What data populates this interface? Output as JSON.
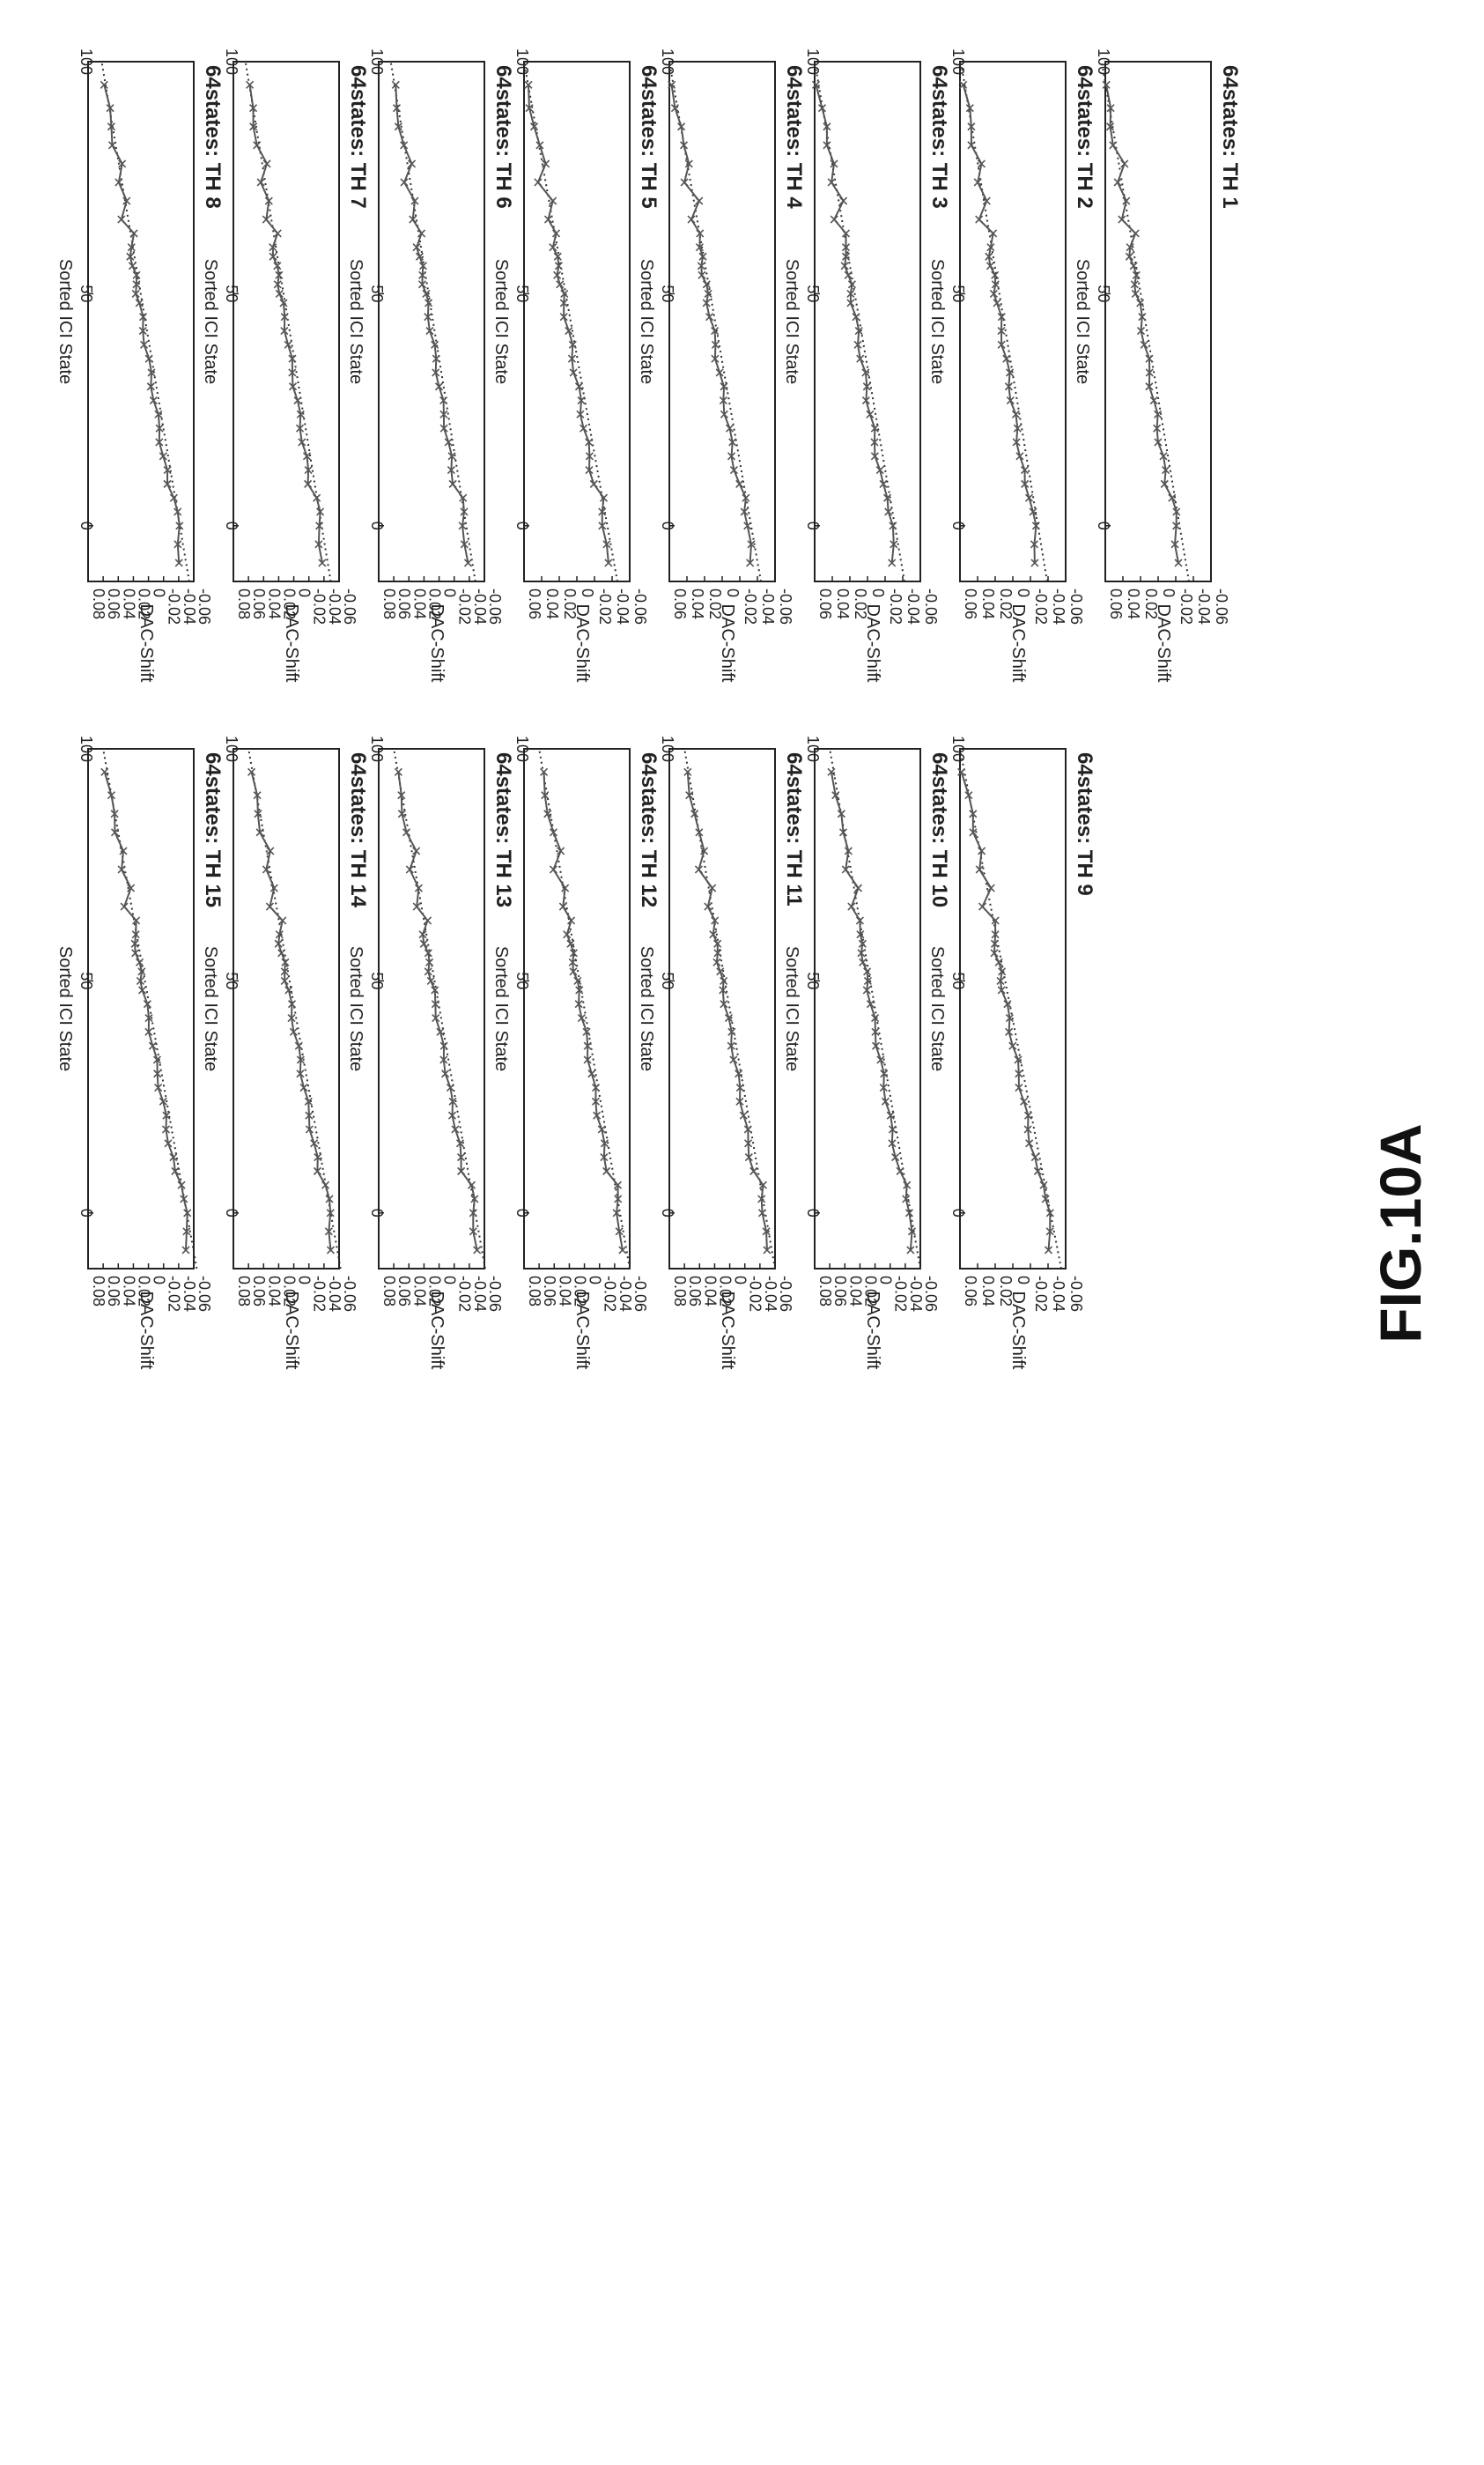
{
  "figure_label": "FIG.10A",
  "chart_data": [
    {
      "type": "line",
      "title": "64states: TH 1",
      "xlabel": "Sorted ICI State",
      "ylabel": "DAC-Shift",
      "xlim": [
        -12,
        100
      ],
      "ylim": [
        -0.06,
        0.06
      ],
      "xticks": [
        0,
        50,
        100
      ],
      "yticks": [
        -0.06,
        -0.04,
        -0.02,
        0,
        0.02,
        0.04,
        0.06
      ],
      "start": -0.023,
      "end": 0.06,
      "series": [
        {
          "name": "",
          "style": "solid-x",
          "values": []
        },
        {
          "name": "",
          "style": "dotted-fit",
          "values": []
        }
      ]
    },
    {
      "type": "line",
      "title": "64states: TH 2",
      "xlabel": "Sorted ICI State",
      "ylabel": "DAC-Shift",
      "xlim": [
        -12,
        100
      ],
      "ylim": [
        -0.06,
        0.06
      ],
      "xticks": [
        0,
        50,
        100
      ],
      "yticks": [
        -0.06,
        -0.04,
        -0.02,
        0,
        0.02,
        0.04,
        0.06
      ],
      "start": -0.027,
      "end": 0.055,
      "series": [
        {
          "name": "",
          "style": "solid-x",
          "values": []
        },
        {
          "name": "",
          "style": "dotted-fit",
          "values": []
        }
      ]
    },
    {
      "type": "line",
      "title": "64states: TH 3",
      "xlabel": "Sorted ICI State",
      "ylabel": "DAC-Shift",
      "xlim": [
        -12,
        100
      ],
      "ylim": [
        -0.06,
        0.06
      ],
      "xticks": [
        0,
        50,
        100
      ],
      "yticks": [
        -0.06,
        -0.04,
        -0.02,
        0,
        0.02,
        0.04,
        0.06
      ],
      "start": -0.03,
      "end": 0.056,
      "series": [
        {
          "name": "",
          "style": "solid-x",
          "values": []
        },
        {
          "name": "",
          "style": "dotted-fit",
          "values": []
        }
      ]
    },
    {
      "type": "line",
      "title": "64states: TH 4",
      "xlabel": "Sorted ICI State",
      "ylabel": "DAC-Shift",
      "xlim": [
        -12,
        100
      ],
      "ylim": [
        -0.06,
        0.06
      ],
      "xticks": [
        0,
        50,
        100
      ],
      "yticks": [
        -0.06,
        -0.04,
        -0.02,
        0,
        0.02,
        0.04,
        0.06
      ],
      "start": -0.032,
      "end": 0.056,
      "series": [
        {
          "name": "",
          "style": "solid-x",
          "values": []
        },
        {
          "name": "",
          "style": "dotted-fit",
          "values": []
        }
      ]
    },
    {
      "type": "line",
      "title": "64states: TH 5",
      "xlabel": "Sorted ICI State",
      "ylabel": "DAC-Shift",
      "xlim": [
        -12,
        100
      ],
      "ylim": [
        -0.06,
        0.06
      ],
      "xticks": [
        0,
        50,
        100
      ],
      "yticks": [
        -0.06,
        -0.04,
        -0.02,
        0,
        0.02,
        0.04,
        0.06
      ],
      "start": -0.034,
      "end": 0.056,
      "series": [
        {
          "name": "",
          "style": "solid-x",
          "values": []
        },
        {
          "name": "",
          "style": "dotted-fit",
          "values": []
        }
      ]
    },
    {
      "type": "line",
      "title": "64states: TH 6",
      "xlabel": "Sorted ICI State",
      "ylabel": "DAC-Shift",
      "xlim": [
        -12,
        100
      ],
      "ylim": [
        -0.06,
        0.08
      ],
      "xticks": [
        0,
        50,
        100
      ],
      "yticks": [
        -0.06,
        -0.04,
        -0.02,
        0,
        0.02,
        0.04,
        0.06,
        0.08
      ],
      "start": -0.036,
      "end": 0.06,
      "series": [
        {
          "name": "",
          "style": "solid-x",
          "values": []
        },
        {
          "name": "",
          "style": "dotted-fit",
          "values": []
        }
      ]
    },
    {
      "type": "line",
      "title": "64states: TH 7",
      "xlabel": "Sorted ICI State",
      "ylabel": "DAC-Shift",
      "xlim": [
        -12,
        100
      ],
      "ylim": [
        -0.06,
        0.08
      ],
      "xticks": [
        0,
        50,
        100
      ],
      "yticks": [
        -0.06,
        -0.04,
        -0.02,
        0,
        0.02,
        0.04,
        0.06,
        0.08
      ],
      "start": -0.037,
      "end": 0.06,
      "series": [
        {
          "name": "",
          "style": "solid-x",
          "values": []
        },
        {
          "name": "",
          "style": "dotted-fit",
          "values": []
        }
      ]
    },
    {
      "type": "line",
      "title": "64states: TH 8",
      "xlabel": "Sorted ICI State",
      "ylabel": "DAC-Shift",
      "xlim": [
        -12,
        100
      ],
      "ylim": [
        -0.06,
        0.08
      ],
      "xticks": [
        0,
        50,
        100
      ],
      "yticks": [
        -0.06,
        -0.04,
        -0.02,
        0,
        0.02,
        0.04,
        0.06,
        0.08
      ],
      "start": -0.042,
      "end": 0.058,
      "series": [
        {
          "name": "",
          "style": "solid-x",
          "values": []
        },
        {
          "name": "",
          "style": "dotted-fit",
          "values": []
        }
      ]
    },
    {
      "type": "line",
      "title": "64states: TH 9",
      "xlabel": "Sorted ICI State",
      "ylabel": "DAC-Shift",
      "xlim": [
        -12,
        100
      ],
      "ylim": [
        -0.06,
        0.06
      ],
      "xticks": [
        0,
        50,
        100
      ],
      "yticks": [
        -0.06,
        -0.04,
        -0.02,
        0,
        0.02,
        0.04,
        0.06
      ],
      "start": -0.043,
      "end": 0.056,
      "series": [
        {
          "name": "",
          "style": "solid-x",
          "values": []
        },
        {
          "name": "",
          "style": "dotted-fit",
          "values": []
        }
      ]
    },
    {
      "type": "line",
      "title": "64states: TH 10",
      "xlabel": "Sorted ICI State",
      "ylabel": "DAC-Shift",
      "xlim": [
        -12,
        100
      ],
      "ylim": [
        -0.06,
        0.08
      ],
      "xticks": [
        0,
        50,
        100
      ],
      "yticks": [
        -0.06,
        -0.04,
        -0.02,
        0,
        0.02,
        0.04,
        0.06,
        0.08
      ],
      "start": -0.048,
      "end": 0.056,
      "series": [
        {
          "name": "",
          "style": "solid-x",
          "values": []
        },
        {
          "name": "",
          "style": "dotted-fit",
          "values": []
        }
      ]
    },
    {
      "type": "line",
      "title": "64states: TH 11",
      "xlabel": "Sorted ICI State",
      "ylabel": "DAC-Shift",
      "xlim": [
        -12,
        100
      ],
      "ylim": [
        -0.06,
        0.08
      ],
      "xticks": [
        0,
        50,
        100
      ],
      "yticks": [
        -0.06,
        -0.04,
        -0.02,
        0,
        0.02,
        0.04,
        0.06,
        0.08
      ],
      "start": -0.048,
      "end": 0.056,
      "series": [
        {
          "name": "",
          "style": "solid-x",
          "values": []
        },
        {
          "name": "",
          "style": "dotted-fit",
          "values": []
        }
      ]
    },
    {
      "type": "line",
      "title": "64states: TH 12",
      "xlabel": "Sorted ICI State",
      "ylabel": "DAC-Shift",
      "xlim": [
        -12,
        100
      ],
      "ylim": [
        -0.06,
        0.08
      ],
      "xticks": [
        0,
        50,
        100
      ],
      "yticks": [
        -0.06,
        -0.04,
        -0.02,
        0,
        0.02,
        0.04,
        0.06,
        0.08
      ],
      "start": -0.048,
      "end": 0.056,
      "series": [
        {
          "name": "",
          "style": "solid-x",
          "values": []
        },
        {
          "name": "",
          "style": "dotted-fit",
          "values": []
        }
      ]
    },
    {
      "type": "line",
      "title": "64states: TH 13",
      "xlabel": "Sorted ICI State",
      "ylabel": "DAC-Shift",
      "xlim": [
        -12,
        100
      ],
      "ylim": [
        -0.06,
        0.08
      ],
      "xticks": [
        0,
        50,
        100
      ],
      "yticks": [
        -0.06,
        -0.04,
        -0.02,
        0,
        0.02,
        0.04,
        0.06,
        0.08
      ],
      "start": -0.049,
      "end": 0.056,
      "series": [
        {
          "name": "",
          "style": "solid-x",
          "values": []
        },
        {
          "name": "",
          "style": "dotted-fit",
          "values": []
        }
      ]
    },
    {
      "type": "line",
      "title": "64states: TH 14",
      "xlabel": "Sorted ICI State",
      "ylabel": "DAC-Shift",
      "xlim": [
        -12,
        100
      ],
      "ylim": [
        -0.06,
        0.08
      ],
      "xticks": [
        0,
        50,
        100
      ],
      "yticks": [
        -0.06,
        -0.04,
        -0.02,
        0,
        0.02,
        0.04,
        0.06,
        0.08
      ],
      "start": -0.05,
      "end": 0.056,
      "series": [
        {
          "name": "",
          "style": "solid-x",
          "values": []
        },
        {
          "name": "",
          "style": "dotted-fit",
          "values": []
        }
      ]
    },
    {
      "type": "line",
      "title": "64states: TH 15",
      "xlabel": "Sorted ICI State",
      "ylabel": "DAC-Shift",
      "xlim": [
        -12,
        100
      ],
      "ylim": [
        -0.06,
        0.08
      ],
      "xticks": [
        0,
        50,
        100
      ],
      "yticks": [
        -0.06,
        -0.04,
        -0.02,
        0,
        0.02,
        0.04,
        0.06,
        0.08
      ],
      "start": -0.052,
      "end": 0.056,
      "series": [
        {
          "name": "",
          "style": "solid-x",
          "values": []
        },
        {
          "name": "",
          "style": "dotted-fit",
          "values": []
        }
      ]
    }
  ]
}
